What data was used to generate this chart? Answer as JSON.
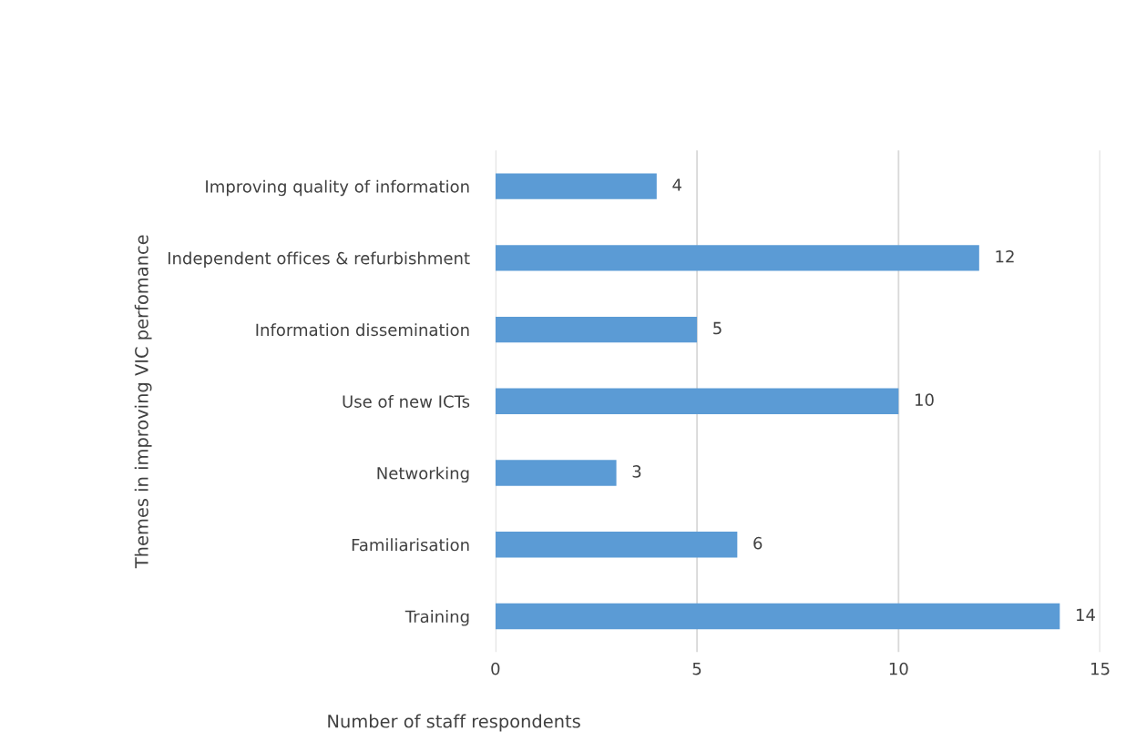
{
  "chart_data": {
    "type": "bar",
    "orientation": "horizontal",
    "categories": [
      "Improving quality of information",
      "Independent offices & refurbishment",
      "Information dissemination",
      "Use of new ICTs",
      "Networking",
      "Familiarisation",
      "Training"
    ],
    "values": [
      4,
      12,
      5,
      10,
      3,
      6,
      14
    ],
    "color": "#5b9bd5",
    "xlim": [
      0,
      15
    ],
    "xticks": [
      0,
      5,
      10,
      15
    ],
    "xlabel": "Number of staff respondents",
    "ylabel": "Themes in improving VIC perfomance",
    "grid": "x",
    "data_labels": true
  }
}
